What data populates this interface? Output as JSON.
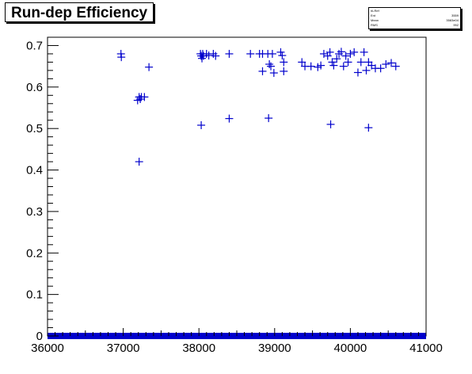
{
  "title": "Run-dep Efficiency",
  "stats": {
    "name": "hLRef",
    "rows": [
      {
        "label": "Ent",
        "value": "3559"
      },
      {
        "label": "Mean",
        "value": "3583e04"
      },
      {
        "label": "RMS",
        "value": "992"
      }
    ]
  },
  "colors": {
    "marker": "#0000cc",
    "axis": "#000000"
  },
  "chart_data": {
    "type": "scatter",
    "title": "Run-dep Efficiency",
    "xlabel": "",
    "ylabel": "",
    "xlim": [
      36000,
      41000
    ],
    "ylim": [
      0,
      0.72
    ],
    "x_ticks": [
      36000,
      37000,
      38000,
      39000,
      40000,
      41000
    ],
    "y_ticks": [
      0,
      0.1,
      0.2,
      0.3,
      0.4,
      0.5,
      0.6,
      0.7
    ],
    "zero_band": {
      "x_range": [
        36000,
        41000
      ],
      "y": 0
    },
    "points": [
      [
        36970,
        0.68
      ],
      [
        36975,
        0.672
      ],
      [
        37190,
        0.568
      ],
      [
        37210,
        0.576
      ],
      [
        37225,
        0.571
      ],
      [
        37240,
        0.576
      ],
      [
        37280,
        0.576
      ],
      [
        37210,
        0.42
      ],
      [
        37340,
        0.648
      ],
      [
        38020,
        0.68
      ],
      [
        38030,
        0.675
      ],
      [
        38040,
        0.669
      ],
      [
        38050,
        0.68
      ],
      [
        38060,
        0.675
      ],
      [
        38100,
        0.68
      ],
      [
        38130,
        0.676
      ],
      [
        38190,
        0.68
      ],
      [
        38220,
        0.675
      ],
      [
        38030,
        0.508
      ],
      [
        38400,
        0.68
      ],
      [
        38400,
        0.524
      ],
      [
        38680,
        0.68
      ],
      [
        38800,
        0.68
      ],
      [
        38840,
        0.68
      ],
      [
        38840,
        0.638
      ],
      [
        38910,
        0.68
      ],
      [
        38930,
        0.655
      ],
      [
        38950,
        0.65
      ],
      [
        38970,
        0.68
      ],
      [
        38990,
        0.634
      ],
      [
        38920,
        0.525
      ],
      [
        39080,
        0.684
      ],
      [
        39100,
        0.676
      ],
      [
        39120,
        0.66
      ],
      [
        39120,
        0.638
      ],
      [
        39360,
        0.66
      ],
      [
        39400,
        0.65
      ],
      [
        39480,
        0.65
      ],
      [
        39570,
        0.648
      ],
      [
        39610,
        0.652
      ],
      [
        39650,
        0.68
      ],
      [
        39700,
        0.675
      ],
      [
        39730,
        0.684
      ],
      [
        39760,
        0.66
      ],
      [
        39780,
        0.652
      ],
      [
        39820,
        0.668
      ],
      [
        39850,
        0.68
      ],
      [
        39880,
        0.685
      ],
      [
        39910,
        0.65
      ],
      [
        39940,
        0.675
      ],
      [
        39970,
        0.66
      ],
      [
        40000,
        0.68
      ],
      [
        40050,
        0.684
      ],
      [
        40100,
        0.635
      ],
      [
        40140,
        0.66
      ],
      [
        40180,
        0.684
      ],
      [
        40210,
        0.64
      ],
      [
        40240,
        0.66
      ],
      [
        40280,
        0.652
      ],
      [
        40330,
        0.645
      ],
      [
        40400,
        0.645
      ],
      [
        40470,
        0.655
      ],
      [
        40540,
        0.658
      ],
      [
        40600,
        0.65
      ],
      [
        39740,
        0.51
      ],
      [
        40240,
        0.502
      ]
    ]
  }
}
